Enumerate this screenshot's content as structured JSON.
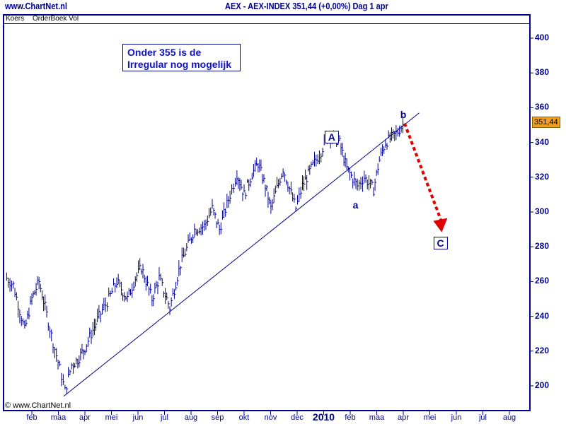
{
  "header": {
    "site": "www.ChartNet.nl",
    "title": "AEX - AEX-INDEX   351,44 (+0,00%)   Dag  1 apr"
  },
  "subtabs": [
    "Koers",
    "OrderBoek Vol"
  ],
  "copyright": "© www.ChartNet.nl",
  "annotation": [
    "Onder 355 is de",
    "Irregular nog mogelijk"
  ],
  "price_tag": "351,44",
  "colors": {
    "axis": "#00008b",
    "bars": "#00008b",
    "arrow": "#e00000",
    "tag": "#f0a020"
  },
  "chart_data": {
    "type": "line",
    "title": "AEX - AEX-INDEX",
    "x_unit": "months since Jan 2009",
    "ylim": [
      188,
      412
    ],
    "xlim": [
      -0.1,
      19.8
    ],
    "yticks": [
      200,
      220,
      240,
      260,
      280,
      300,
      320,
      340,
      360,
      380,
      400
    ],
    "xticks": [
      {
        "m": 1,
        "label": "feb"
      },
      {
        "m": 2,
        "label": "maa"
      },
      {
        "m": 3,
        "label": "apr"
      },
      {
        "m": 4,
        "label": "mei"
      },
      {
        "m": 5,
        "label": "jun"
      },
      {
        "m": 6,
        "label": "jul"
      },
      {
        "m": 7,
        "label": "aug"
      },
      {
        "m": 8,
        "label": "sep"
      },
      {
        "m": 9,
        "label": "okt"
      },
      {
        "m": 10,
        "label": "nov"
      },
      {
        "m": 11,
        "label": "dec"
      },
      {
        "m": 12,
        "label": "2010"
      },
      {
        "m": 13,
        "label": "feb"
      },
      {
        "m": 14,
        "label": "maa"
      },
      {
        "m": 15,
        "label": "apr"
      },
      {
        "m": 16,
        "label": "mei"
      },
      {
        "m": 17,
        "label": "jun"
      },
      {
        "m": 18,
        "label": "jul"
      },
      {
        "m": 19,
        "label": "aug"
      }
    ],
    "series": [
      {
        "name": "AEX",
        "points": [
          [
            0.05,
            262
          ],
          [
            0.3,
            258
          ],
          [
            0.73,
            232
          ],
          [
            1.0,
            250
          ],
          [
            1.27,
            260
          ],
          [
            1.5,
            245
          ],
          [
            1.8,
            225
          ],
          [
            2.05,
            210
          ],
          [
            2.25,
            197
          ],
          [
            2.5,
            212
          ],
          [
            2.73,
            215
          ],
          [
            3.0,
            222
          ],
          [
            3.3,
            232
          ],
          [
            3.53,
            240
          ],
          [
            3.9,
            250
          ],
          [
            4.2,
            260
          ],
          [
            4.6,
            250
          ],
          [
            4.9,
            262
          ],
          [
            5.13,
            268
          ],
          [
            5.53,
            250
          ],
          [
            5.8,
            262
          ],
          [
            6.2,
            245
          ],
          [
            6.6,
            270
          ],
          [
            7.13,
            290
          ],
          [
            7.5,
            292
          ],
          [
            7.8,
            302
          ],
          [
            8.07,
            290
          ],
          [
            8.47,
            310
          ],
          [
            8.73,
            322
          ],
          [
            9.0,
            310
          ],
          [
            9.3,
            322
          ],
          [
            9.53,
            328
          ],
          [
            9.8,
            315
          ],
          [
            10.01,
            302
          ],
          [
            10.47,
            325
          ],
          [
            10.95,
            302
          ],
          [
            11.2,
            315
          ],
          [
            11.53,
            325
          ],
          [
            11.9,
            335
          ],
          [
            12.2,
            345
          ],
          [
            12.6,
            340
          ],
          [
            12.87,
            325
          ],
          [
            13.27,
            315
          ],
          [
            13.53,
            320
          ],
          [
            13.88,
            313
          ],
          [
            14.1,
            330
          ],
          [
            14.33,
            340
          ],
          [
            14.73,
            345
          ],
          [
            15.05,
            351.44
          ]
        ]
      }
    ],
    "trendline": [
      [
        2.2,
        194
      ],
      [
        15.6,
        357
      ]
    ],
    "projection_arrow": [
      [
        15.05,
        351
      ],
      [
        16.45,
        290
      ]
    ],
    "labels": [
      {
        "text": "A",
        "m": 12.3,
        "v": 343,
        "boxed": true
      },
      {
        "text": "a",
        "m": 13.2,
        "v": 304,
        "boxed": false
      },
      {
        "text": "b",
        "m": 15.0,
        "v": 356,
        "boxed": false
      },
      {
        "text": "C",
        "m": 16.4,
        "v": 282,
        "boxed": true
      }
    ]
  }
}
